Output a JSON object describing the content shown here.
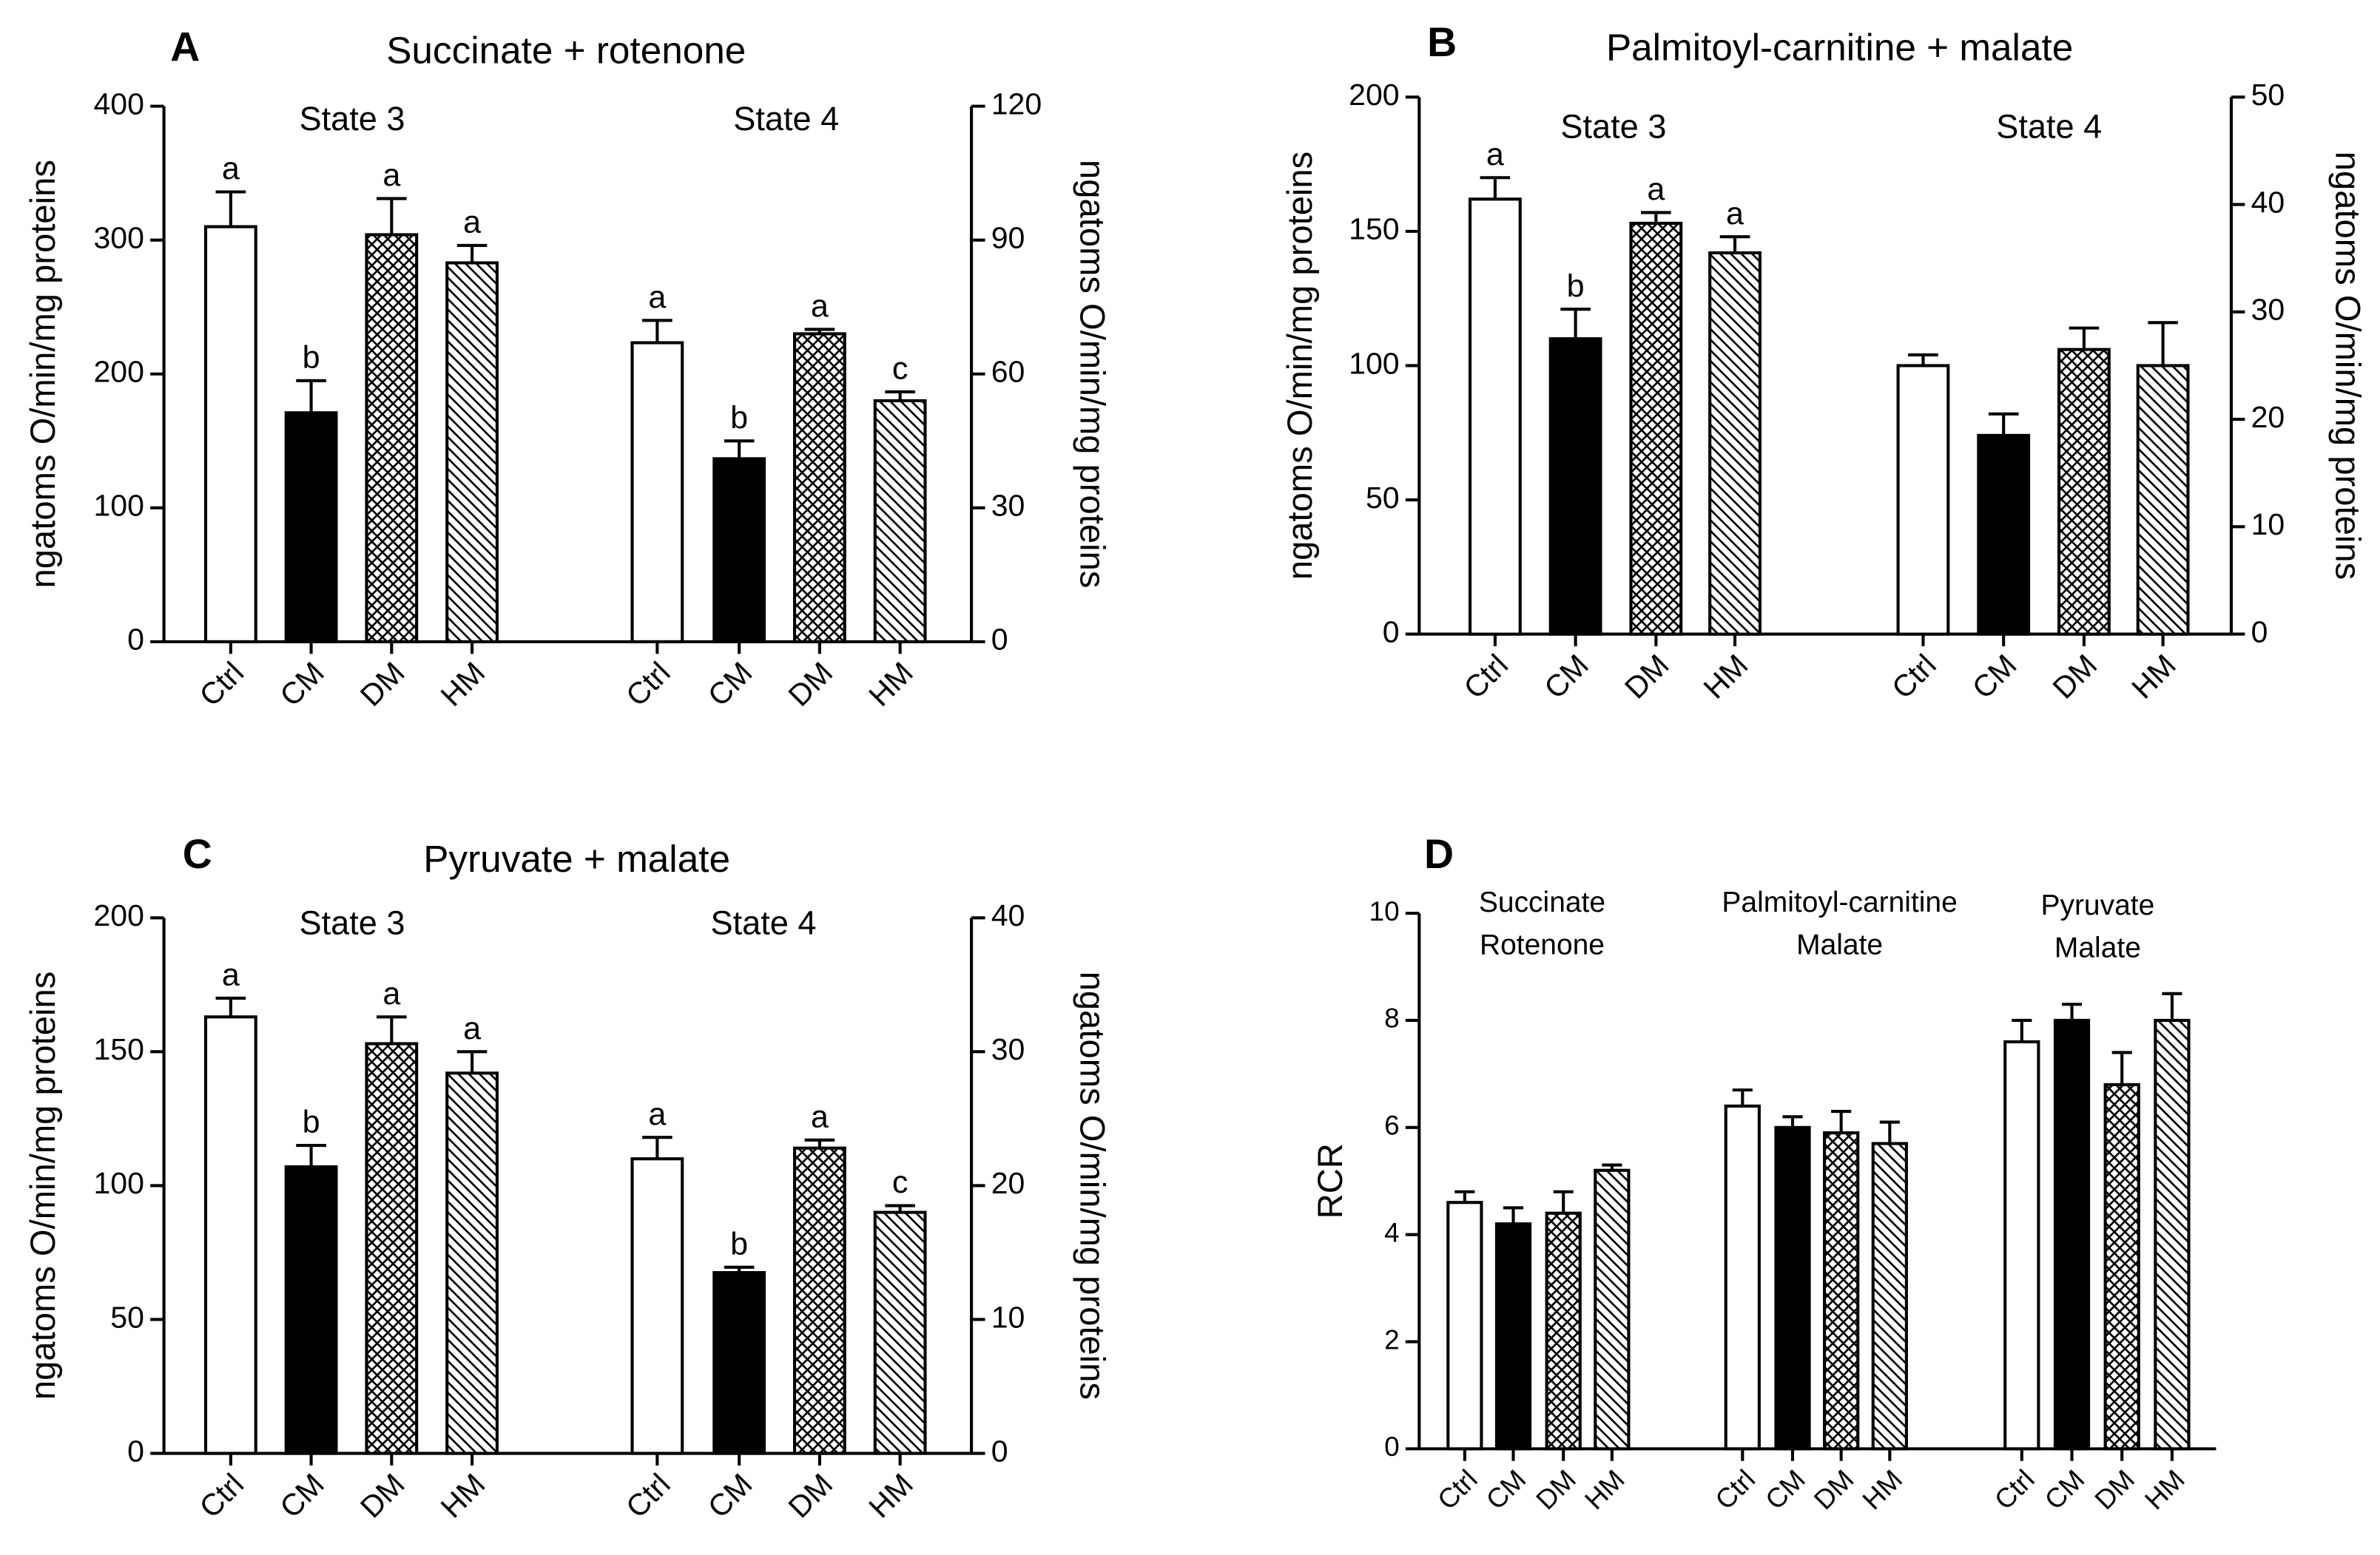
{
  "chart_data": [
    {
      "type": "bar",
      "panel": "A",
      "title": "Succinate + rotenone",
      "ylabel": "ngatoms O/min/mg proteins",
      "y2label": "ngatoms O/min/mg proteins",
      "ylim": [
        0,
        400
      ],
      "yticks": [
        0,
        100,
        200,
        300,
        400
      ],
      "y2lim": [
        0,
        120
      ],
      "y2ticks": [
        0,
        30,
        60,
        90,
        120
      ],
      "bar_styles": [
        "white",
        "black",
        "crosshatch",
        "hatch"
      ],
      "groups": [
        {
          "name": "State 3",
          "axis": "y",
          "categories": [
            "Ctrl",
            "CM",
            "DM",
            "HM"
          ],
          "values": [
            310,
            171,
            304,
            283
          ],
          "errors": [
            26,
            24,
            27,
            13
          ],
          "letters": [
            "a",
            "b",
            "a",
            "a"
          ]
        },
        {
          "name": "State 4",
          "axis": "y2",
          "categories": [
            "Ctrl",
            "CM",
            "DM",
            "HM"
          ],
          "values": [
            67,
            41,
            69,
            54
          ],
          "errors": [
            5,
            4,
            1,
            2
          ],
          "letters": [
            "a",
            "b",
            "a",
            "c"
          ]
        }
      ]
    },
    {
      "type": "bar",
      "panel": "B",
      "title": "Palmitoyl-carnitine + malate",
      "ylabel": "ngatoms O/min/mg proteins",
      "y2label": "ngatoms O/min/mg proteins",
      "ylim": [
        0,
        200
      ],
      "yticks": [
        0,
        50,
        100,
        150,
        200
      ],
      "y2lim": [
        0,
        50
      ],
      "y2ticks": [
        0,
        10,
        20,
        30,
        40,
        50
      ],
      "bar_styles": [
        "white",
        "black",
        "crosshatch",
        "hatch"
      ],
      "groups": [
        {
          "name": "State 3",
          "axis": "y",
          "categories": [
            "Ctrl",
            "CM",
            "DM",
            "HM"
          ],
          "values": [
            162,
            110,
            153,
            142
          ],
          "errors": [
            8,
            11,
            4,
            6
          ],
          "letters": [
            "a",
            "b",
            "a",
            "a"
          ]
        },
        {
          "name": "State 4",
          "axis": "y2",
          "categories": [
            "Ctrl",
            "CM",
            "DM",
            "HM"
          ],
          "values": [
            25,
            18.5,
            26.5,
            25
          ],
          "errors": [
            1,
            2,
            2,
            4
          ]
        }
      ]
    },
    {
      "type": "bar",
      "panel": "C",
      "title": "Pyruvate + malate",
      "ylabel": "ngatoms O/min/mg proteins",
      "y2label": "ngatoms O/min/mg proteins",
      "ylim": [
        0,
        200
      ],
      "yticks": [
        0,
        50,
        100,
        150,
        200
      ],
      "y2lim": [
        0,
        40
      ],
      "y2ticks": [
        0,
        10,
        20,
        30,
        40
      ],
      "bar_styles": [
        "white",
        "black",
        "crosshatch",
        "hatch"
      ],
      "groups": [
        {
          "name": "State 3",
          "axis": "y",
          "categories": [
            "Ctrl",
            "CM",
            "DM",
            "HM"
          ],
          "values": [
            163,
            107,
            153,
            142
          ],
          "errors": [
            7,
            8,
            10,
            8
          ],
          "letters": [
            "a",
            "b",
            "a",
            "a"
          ]
        },
        {
          "name": "State 4",
          "axis": "y2",
          "categories": [
            "Ctrl",
            "CM",
            "DM",
            "HM"
          ],
          "values": [
            22,
            13.5,
            22.8,
            18
          ],
          "errors": [
            1.6,
            0.4,
            0.6,
            0.5
          ],
          "letters": [
            "a",
            "b",
            "a",
            "c"
          ]
        }
      ]
    },
    {
      "type": "bar",
      "panel": "D",
      "ylabel": "RCR",
      "ylim": [
        0,
        10
      ],
      "yticks": [
        0,
        2,
        4,
        6,
        8,
        10
      ],
      "bar_styles": [
        "white",
        "black",
        "crosshatch",
        "hatch"
      ],
      "groups": [
        {
          "name": [
            "Succinate",
            "Rotenone"
          ],
          "axis": "y",
          "categories": [
            "Ctrl",
            "CM",
            "DM",
            "HM"
          ],
          "values": [
            4.6,
            4.2,
            4.4,
            5.2
          ],
          "errors": [
            0.2,
            0.3,
            0.4,
            0.1
          ]
        },
        {
          "name": [
            "Palmitoyl-carnitine",
            "Malate"
          ],
          "axis": "y",
          "categories": [
            "Ctrl",
            "CM",
            "DM",
            "HM"
          ],
          "values": [
            6.4,
            6.0,
            5.9,
            5.7
          ],
          "errors": [
            0.3,
            0.2,
            0.4,
            0.4
          ]
        },
        {
          "name": [
            "Pyruvate",
            "Malate"
          ],
          "axis": "y",
          "categories": [
            "Ctrl",
            "CM",
            "DM",
            "HM"
          ],
          "values": [
            7.6,
            8.0,
            6.8,
            8.0
          ],
          "errors": [
            0.4,
            0.3,
            0.6,
            0.5
          ]
        }
      ]
    }
  ]
}
